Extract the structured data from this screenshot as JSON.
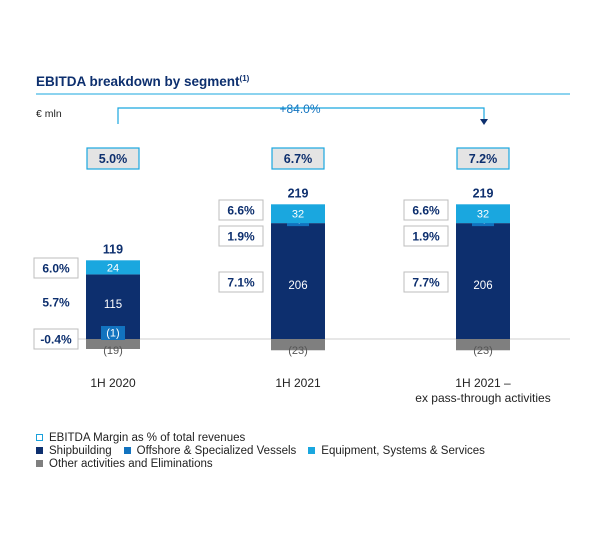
{
  "chart_data": {
    "type": "bar",
    "stacked": true,
    "title": "EBITDA breakdown by segment",
    "title_superscript": "(1)",
    "unit_label": "€ mln",
    "growth_annotation": "+84.0%",
    "categories": [
      "1H 2020",
      "1H 2021",
      "1H 2021 –\nex pass-through activities"
    ],
    "series": [
      {
        "name": "Shipbuilding",
        "color": "#0d2f6e",
        "values": [
          115,
          206,
          206
        ],
        "labels": [
          "115",
          "206",
          "206"
        ]
      },
      {
        "name": "Offshore & Specialized Vessels",
        "color": "#1273bf",
        "values": [
          -1,
          4,
          4
        ],
        "labels": [
          "(1)",
          "4",
          "4"
        ]
      },
      {
        "name": "Equipment, Systems & Services",
        "color": "#1aa7df",
        "values": [
          24,
          32,
          32
        ],
        "labels": [
          "24",
          "32",
          "32"
        ]
      },
      {
        "name": "Other activities and Eliminations",
        "color": "#7f7f7f",
        "values": [
          -19,
          -23,
          -23
        ],
        "labels": [
          "(19)",
          "(23)",
          "(23)"
        ]
      }
    ],
    "totals": [
      "119",
      "219",
      "219"
    ],
    "total_margins": [
      "5.0%",
      "6.7%",
      "7.2%"
    ],
    "segment_margins": [
      {
        "ess": "6.0%",
        "ship": "5.7%",
        "osv": "-0.4%"
      },
      {
        "ess": "6.6%",
        "osv": "1.9%",
        "ship": "7.1%"
      },
      {
        "ess": "6.6%",
        "osv": "1.9%",
        "ship": "7.7%"
      }
    ],
    "legend": {
      "margin_label": "EBITDA Margin as % of total revenues",
      "position": "bottom-left"
    }
  }
}
